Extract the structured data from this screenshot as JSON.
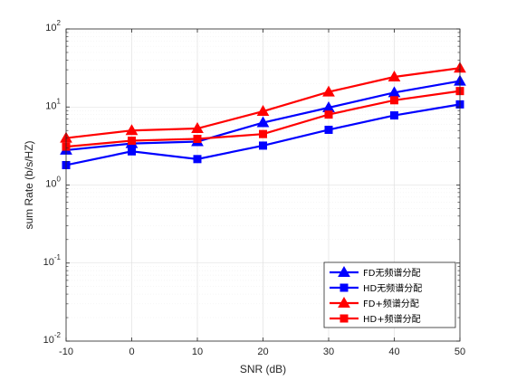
{
  "chart_data": {
    "type": "line",
    "xlabel": "SNR (dB)",
    "ylabel": "sum Rate (b/s/HZ)",
    "x": [
      -10,
      0,
      10,
      20,
      30,
      40,
      50
    ],
    "xlim": [
      -10,
      50
    ],
    "xticks": [
      "-10",
      "0",
      "10",
      "20",
      "30",
      "40",
      "50"
    ],
    "yscale": "log",
    "ylim": [
      0.01,
      100
    ],
    "yticks": [
      {
        "value": 0.01,
        "base": "10",
        "exp": "-2"
      },
      {
        "value": 0.1,
        "base": "10",
        "exp": "-1"
      },
      {
        "value": 1,
        "base": "10",
        "exp": "0"
      },
      {
        "value": 10,
        "base": "10",
        "exp": "1"
      },
      {
        "value": 100,
        "base": "10",
        "exp": "2"
      }
    ],
    "grid": true,
    "legend_position": "bottom-right",
    "series": [
      {
        "name": "FD无频谱分配",
        "color": "#0000ff",
        "marker": "triangle",
        "values": [
          2.8,
          3.4,
          3.6,
          6.3,
          9.8,
          15.3,
          21.5
        ]
      },
      {
        "name": "HD无频谱分配",
        "color": "#0000ff",
        "marker": "square",
        "values": [
          1.8,
          2.7,
          2.15,
          3.2,
          5.1,
          7.8,
          10.8
        ]
      },
      {
        "name": "FD+频谱分配",
        "color": "#ff0000",
        "marker": "triangle",
        "values": [
          4.0,
          5.0,
          5.3,
          8.8,
          15.6,
          24.3,
          31.5
        ]
      },
      {
        "name": "HD+频谱分配",
        "color": "#ff0000",
        "marker": "square",
        "values": [
          3.1,
          3.7,
          3.9,
          4.5,
          8.0,
          12.2,
          16.0
        ]
      }
    ]
  }
}
